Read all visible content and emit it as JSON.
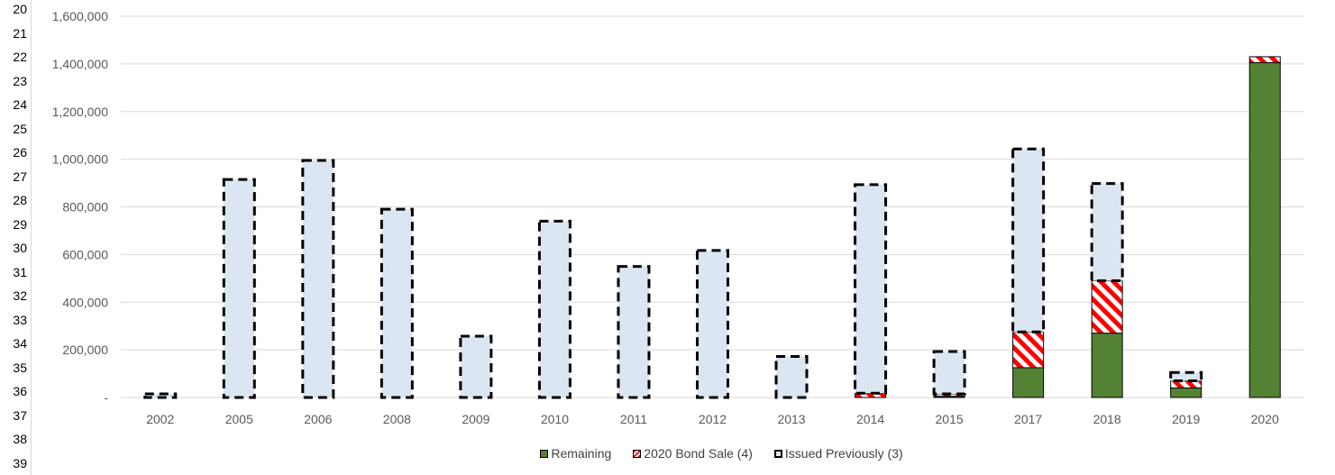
{
  "row_numbers": [
    "20",
    "21",
    "22",
    "23",
    "24",
    "25",
    "26",
    "27",
    "28",
    "29",
    "30",
    "31",
    "32",
    "33",
    "34",
    "35",
    "36",
    "37",
    "38",
    "39"
  ],
  "chart_data": {
    "type": "bar",
    "stacked": true,
    "categories": [
      "2002",
      "2005",
      "2006",
      "2008",
      "2009",
      "2010",
      "2011",
      "2012",
      "2013",
      "2014",
      "2015",
      "2017",
      "2018",
      "2019",
      "2020"
    ],
    "series": [
      {
        "name": "Remaining",
        "color": "#548235",
        "pattern": "solid",
        "values": [
          0,
          0,
          0,
          0,
          0,
          0,
          0,
          0,
          0,
          0,
          5000,
          125000,
          270000,
          40000,
          1405000
        ]
      },
      {
        "name": "2020 Bond Sale (4)",
        "color": "#ff0000",
        "pattern": "red-white-diagonal-stripes",
        "values": [
          0,
          0,
          0,
          0,
          0,
          0,
          0,
          0,
          0,
          18000,
          10000,
          150000,
          220000,
          30000,
          25000
        ]
      },
      {
        "name": "Issued Previously (3)",
        "color": "#dce6f2",
        "pattern": "dashed-black-border",
        "values": [
          15000,
          915000,
          995000,
          790000,
          257000,
          740000,
          550000,
          617000,
          172000,
          875000,
          178000,
          768000,
          408000,
          35000,
          0
        ]
      }
    ],
    "ylim": [
      0,
      1600000
    ],
    "yticks": [
      0,
      200000,
      400000,
      600000,
      800000,
      1000000,
      1200000,
      1400000,
      1600000
    ],
    "ytick_labels": [
      "-",
      "200,000",
      "400,000",
      "600,000",
      "800,000",
      "1,000,000",
      "1,200,000",
      "1,400,000",
      "1,600,000"
    ],
    "grid": true,
    "legend_position": "bottom",
    "title": "",
    "xlabel": "",
    "ylabel": ""
  },
  "legend": {
    "items": [
      {
        "label": "Remaining"
      },
      {
        "label": "2020 Bond Sale (4)"
      },
      {
        "label": "Issued Previously (3)"
      }
    ]
  }
}
